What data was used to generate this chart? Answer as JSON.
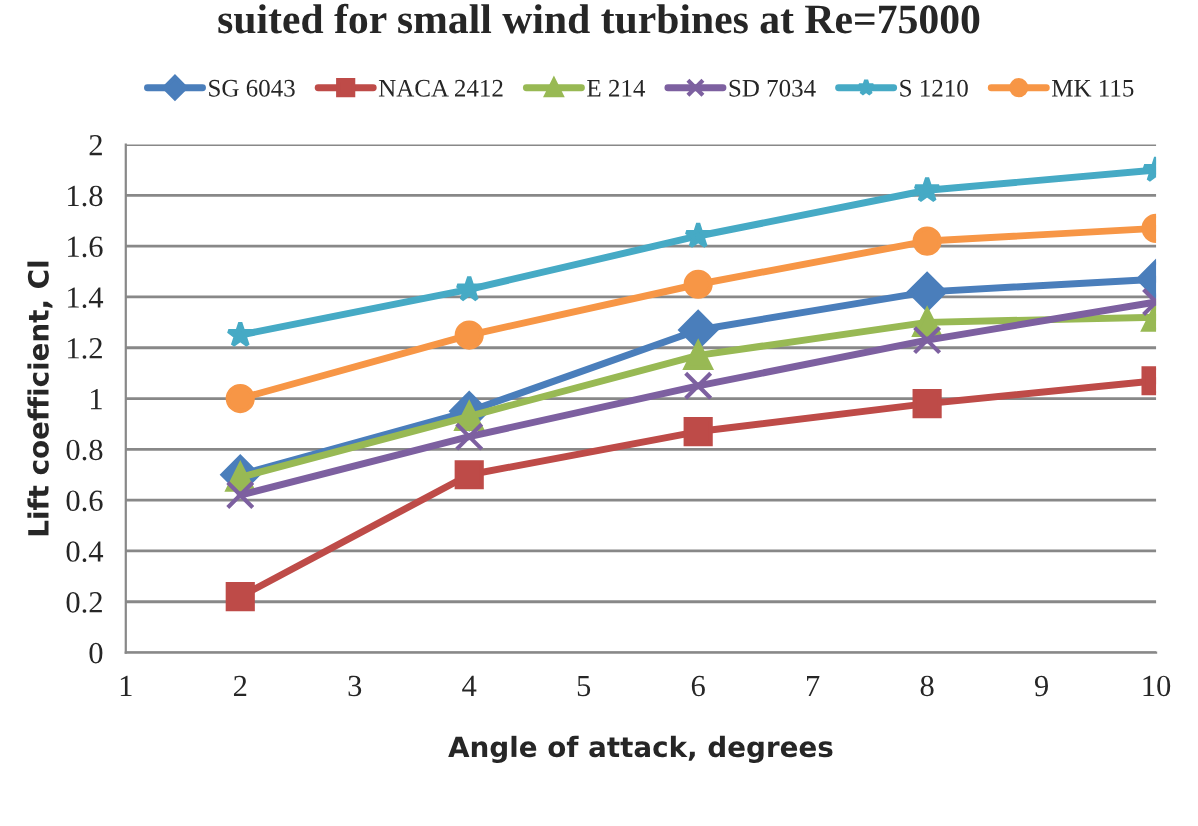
{
  "chart_data": {
    "type": "line",
    "title": "suited for small wind turbines at Re=75000",
    "xlabel": "Angle of attack, degrees",
    "ylabel": "Lift coefficient, Cl",
    "x": [
      2,
      4,
      6,
      8,
      10
    ],
    "xlim": [
      1,
      10
    ],
    "xticks": [
      1,
      2,
      3,
      4,
      5,
      6,
      7,
      8,
      9,
      10
    ],
    "ylim": [
      0,
      2
    ],
    "yticks": [
      0,
      0.2,
      0.4,
      0.6,
      0.8,
      1,
      1.2,
      1.4,
      1.6,
      1.8,
      2
    ],
    "grid": "y",
    "legend": "top",
    "line_style": "solid",
    "series": [
      {
        "name": "SG 6043",
        "color": "#4a7ebb",
        "marker": "diamond",
        "values": [
          0.7,
          0.95,
          1.27,
          1.42,
          1.47
        ]
      },
      {
        "name": "NACA 2412",
        "color": "#be4b48",
        "marker": "square",
        "values": [
          0.22,
          0.7,
          0.87,
          0.98,
          1.07
        ]
      },
      {
        "name": "E 214",
        "color": "#98b954",
        "marker": "triangle",
        "values": [
          0.69,
          0.93,
          1.17,
          1.3,
          1.32
        ]
      },
      {
        "name": "SD 7034",
        "color": "#7d60a0",
        "marker": "cross",
        "values": [
          0.62,
          0.85,
          1.05,
          1.23,
          1.38
        ]
      },
      {
        "name": "S 1210",
        "color": "#46aac5",
        "marker": "star",
        "values": [
          1.25,
          1.43,
          1.64,
          1.82,
          1.9
        ]
      },
      {
        "name": "MK 115",
        "color": "#f79646",
        "marker": "circle",
        "values": [
          1.0,
          1.25,
          1.45,
          1.62,
          1.67
        ]
      }
    ]
  }
}
